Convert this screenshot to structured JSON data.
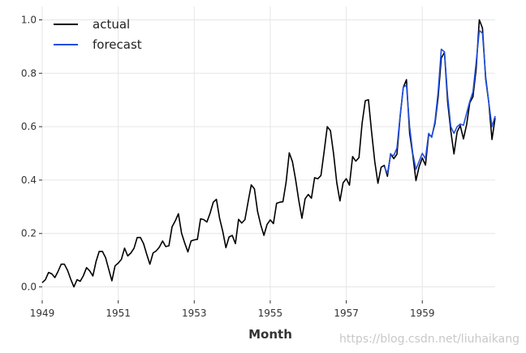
{
  "chart_data": {
    "type": "line",
    "xlabel": "Month",
    "ylabel": "",
    "xlim": [
      1949,
      1960.917
    ],
    "ylim": [
      -0.05,
      1.05
    ],
    "x_ticks": [
      1949,
      1951,
      1953,
      1955,
      1957,
      1959
    ],
    "x_tick_labels": [
      "1949",
      "1951",
      "1953",
      "1955",
      "1957",
      "1959"
    ],
    "y_ticks": [
      0.0,
      0.2,
      0.4,
      0.6,
      0.8,
      1.0
    ],
    "y_tick_labels": [
      "0.0",
      "0.2",
      "0.4",
      "0.6",
      "0.8",
      "1.0"
    ],
    "grid": true,
    "legend_position": "top-left",
    "series": [
      {
        "name": "actual",
        "color": "#000000",
        "x_start": 1949,
        "x_step_months": 1,
        "values": [
          0.016,
          0.027,
          0.054,
          0.049,
          0.035,
          0.058,
          0.085,
          0.085,
          0.062,
          0.029,
          0.0,
          0.027,
          0.021,
          0.042,
          0.072,
          0.06,
          0.041,
          0.095,
          0.133,
          0.133,
          0.11,
          0.066,
          0.023,
          0.079,
          0.089,
          0.103,
          0.145,
          0.116,
          0.127,
          0.145,
          0.185,
          0.185,
          0.162,
          0.122,
          0.085,
          0.127,
          0.135,
          0.149,
          0.172,
          0.151,
          0.154,
          0.225,
          0.247,
          0.274,
          0.201,
          0.164,
          0.131,
          0.172,
          0.176,
          0.178,
          0.255,
          0.252,
          0.243,
          0.276,
          0.317,
          0.328,
          0.257,
          0.208,
          0.147,
          0.187,
          0.193,
          0.162,
          0.253,
          0.239,
          0.252,
          0.318,
          0.382,
          0.367,
          0.282,
          0.232,
          0.193,
          0.234,
          0.251,
          0.237,
          0.313,
          0.317,
          0.319,
          0.392,
          0.502,
          0.469,
          0.402,
          0.324,
          0.257,
          0.33,
          0.346,
          0.332,
          0.409,
          0.405,
          0.417,
          0.506,
          0.6,
          0.585,
          0.498,
          0.39,
          0.322,
          0.39,
          0.405,
          0.381,
          0.488,
          0.471,
          0.484,
          0.613,
          0.697,
          0.701,
          0.579,
          0.469,
          0.388,
          0.448,
          0.455,
          0.414,
          0.498,
          0.48,
          0.497,
          0.637,
          0.747,
          0.776,
          0.575,
          0.494,
          0.398,
          0.45,
          0.483,
          0.456,
          0.569,
          0.564,
          0.611,
          0.71,
          0.857,
          0.878,
          0.693,
          0.584,
          0.498,
          0.581,
          0.604,
          0.554,
          0.608,
          0.69,
          0.712,
          0.815,
          1.0,
          0.969,
          0.78,
          0.69,
          0.552,
          0.633
        ]
      },
      {
        "name": "forecast",
        "color": "#1f4fe0",
        "x_start": 1958,
        "x_step_months": 1,
        "values": [
          0.45,
          0.425,
          0.495,
          0.492,
          0.52,
          0.64,
          0.748,
          0.755,
          0.6,
          0.5,
          0.44,
          0.47,
          0.5,
          0.48,
          0.575,
          0.56,
          0.62,
          0.73,
          0.89,
          0.88,
          0.715,
          0.6,
          0.575,
          0.6,
          0.61,
          0.605,
          0.65,
          0.695,
          0.73,
          0.84,
          0.96,
          0.95,
          0.79,
          0.69,
          0.6,
          0.64
        ]
      }
    ]
  },
  "watermark": "https://blog.csdn.net/liuhaikang"
}
